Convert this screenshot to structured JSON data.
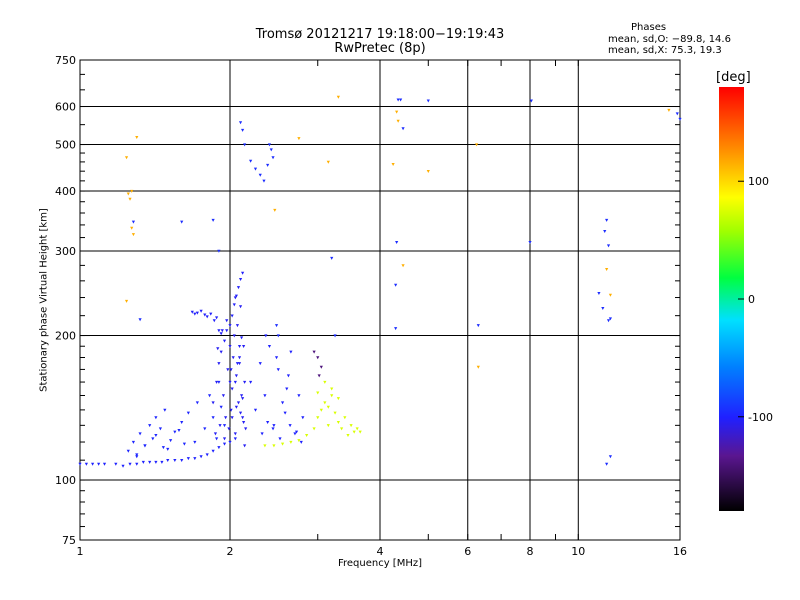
{
  "chart_data": {
    "type": "scatter",
    "title_line1": "Tromsø 20121217 19:18:00−19:19:43",
    "title_line2": "RwPretec (8p)",
    "stats": {
      "heading": "Phases",
      "line_o": "mean, sd,O: −89.8, 14.6",
      "line_x": "mean, sd,X:  75.3, 19.3"
    },
    "xlabel": "Frequency [MHz]",
    "ylabel": "Stationary phase Virtual Height [km]",
    "x_scale": "log",
    "y_scale": "log",
    "xlim": [
      1,
      16
    ],
    "ylim": [
      75,
      750
    ],
    "xticks": [
      1,
      2,
      4,
      6,
      8,
      10,
      16
    ],
    "yticks": [
      75,
      100,
      200,
      300,
      400,
      500,
      600,
      750
    ],
    "grid_x": [
      2,
      4,
      6,
      8,
      10
    ],
    "grid_y": [
      100,
      200,
      300,
      400,
      500,
      600
    ],
    "colorbar": {
      "label": "[deg]",
      "range": [
        -180,
        180
      ],
      "ticks": [
        -100,
        0,
        100
      ]
    },
    "point_groups": [
      {
        "name": "base trace",
        "phase": -100,
        "x": [
          1.0,
          1.03,
          1.06,
          1.09,
          1.12,
          1.18,
          1.22,
          1.26,
          1.3,
          1.34,
          1.38,
          1.42,
          1.46,
          1.5,
          1.55,
          1.6,
          1.65,
          1.7,
          1.75,
          1.8,
          1.85,
          1.9,
          1.95,
          2.0,
          2.05
        ],
        "y": [
          108,
          108,
          108,
          108,
          108,
          108,
          107,
          108,
          108,
          109,
          109,
          109,
          109,
          110,
          110,
          110,
          111,
          111,
          112,
          113,
          115,
          117,
          119,
          120,
          122
        ]
      },
      {
        "name": "low-band scatter",
        "phase": -98,
        "x": [
          1.25,
          1.28,
          1.3,
          1.32,
          1.35,
          1.38,
          1.4,
          1.42,
          1.45,
          1.48,
          1.5,
          1.55,
          1.6,
          1.65,
          1.7,
          1.72,
          1.78,
          1.82,
          1.85,
          1.88,
          1.9,
          1.92,
          1.95,
          1.3,
          1.35,
          1.42,
          1.47,
          1.52,
          1.58,
          1.62
        ],
        "y": [
          115,
          120,
          112,
          125,
          118,
          130,
          122,
          135,
          128,
          140,
          116,
          126,
          132,
          138,
          120,
          145,
          128,
          150,
          135,
          122,
          160,
          142,
          130,
          113,
          118,
          124,
          117,
          121,
          127,
          119
        ]
      },
      {
        "name": "O-mode trace",
        "phase": -102,
        "x": [
          1.68,
          1.7,
          1.72,
          1.75,
          1.78,
          1.8,
          1.83,
          1.86,
          1.88,
          1.9,
          1.92,
          1.95,
          1.97,
          2.0,
          2.02,
          2.04,
          2.06,
          2.08,
          2.1,
          2.12,
          2.05,
          2.07,
          2.09,
          2.11
        ],
        "y": [
          224,
          222,
          223,
          225,
          221,
          219,
          222,
          215,
          218,
          205,
          202,
          195,
          205,
          210,
          220,
          232,
          242,
          252,
          262,
          270,
          160,
          175,
          190,
          198
        ]
      },
      {
        "name": "spread F cluster",
        "phase": -104,
        "x": [
          1.85,
          1.88,
          1.9,
          1.92,
          1.94,
          1.96,
          1.98,
          2.0,
          2.01,
          2.02,
          2.03,
          2.04,
          2.05,
          2.06,
          2.07,
          2.08,
          2.09,
          2.1,
          2.11,
          2.12,
          2.13,
          2.14,
          2.15,
          1.87,
          1.91,
          1.95,
          1.99,
          2.02,
          2.06,
          2.1,
          2.13,
          1.89,
          1.93,
          1.97,
          2.01,
          2.05,
          2.09,
          2.12,
          2.14,
          2.0
        ],
        "y": [
          145,
          160,
          175,
          185,
          150,
          135,
          170,
          190,
          140,
          155,
          180,
          200,
          125,
          165,
          210,
          145,
          175,
          230,
          150,
          135,
          190,
          160,
          128,
          125,
          130,
          122,
          128,
          135,
          142,
          138,
          132,
          188,
          205,
          215,
          170,
          240,
          180,
          148,
          118,
          160
        ]
      },
      {
        "name": "mid-band cluster",
        "phase": -100,
        "x": [
          2.2,
          2.25,
          2.3,
          2.35,
          2.4,
          2.45,
          2.5,
          2.55,
          2.6,
          2.65,
          2.7,
          2.75,
          2.8,
          2.32,
          2.38,
          2.44,
          2.52,
          2.58,
          2.64,
          2.72,
          2.78,
          2.36,
          2.48,
          2.62
        ],
        "y": [
          160,
          140,
          175,
          150,
          190,
          130,
          170,
          145,
          155,
          185,
          125,
          150,
          135,
          125,
          132,
          128,
          122,
          138,
          130,
          126,
          120,
          200,
          180,
          165
        ]
      },
      {
        "name": "X-mode cluster",
        "phase": 75,
        "x": [
          2.35,
          2.45,
          2.55,
          2.65,
          2.75,
          2.85,
          2.95,
          3.0,
          3.05,
          3.1,
          3.15,
          3.2,
          3.25,
          3.3,
          3.35,
          3.4,
          3.45,
          3.5,
          3.55,
          3.6,
          3.65,
          3.1,
          3.2,
          3.3,
          3.0,
          3.15
        ],
        "y": [
          118,
          118,
          119,
          120,
          121,
          124,
          128,
          135,
          140,
          145,
          130,
          150,
          138,
          132,
          128,
          135,
          124,
          130,
          126,
          128,
          126,
          160,
          155,
          148,
          152,
          142
        ]
      },
      {
        "name": "purple trace",
        "phase": -140,
        "x": [
          2.95,
          3.0,
          3.05,
          3.02
        ],
        "y": [
          185,
          180,
          172,
          165
        ]
      },
      {
        "name": "blue scattered echoes",
        "phase": -95,
        "x": [
          1.28,
          1.32,
          1.6,
          1.85,
          1.9,
          2.1,
          2.12,
          2.14,
          2.2,
          2.25,
          2.3,
          2.34,
          2.38,
          2.4,
          2.42,
          2.44,
          2.48,
          2.5,
          3.2,
          3.25,
          4.3,
          4.32,
          4.3,
          4.35,
          4.4,
          4.45,
          5.0,
          6.3,
          8.0,
          8.05,
          11.0,
          11.2,
          11.3,
          11.4,
          11.5,
          11.6,
          11.5,
          11.6,
          11.4,
          15.8,
          16.0
        ],
        "y": [
          345,
          216,
          345,
          348,
          300,
          556,
          536,
          500,
          462,
          445,
          432,
          420,
          453,
          500,
          488,
          470,
          210,
          200,
          290,
          200,
          255,
          313,
          207,
          620,
          620,
          540,
          617,
          210,
          313,
          617,
          245,
          228,
          330,
          348,
          215,
          217,
          308,
          112,
          108,
          580,
          565
        ]
      },
      {
        "name": "warm scattered echoes",
        "phase": 115,
        "x": [
          1.24,
          1.25,
          1.26,
          1.27,
          1.28,
          1.3,
          1.27,
          1.24,
          2.46,
          2.75,
          3.15,
          3.3,
          4.25,
          4.32,
          4.35,
          4.45,
          5.0,
          6.25,
          6.3,
          11.4,
          11.6,
          15.2
        ],
        "y": [
          470,
          395,
          385,
          335,
          325,
          518,
          400,
          236,
          365,
          515,
          460,
          628,
          455,
          585,
          560,
          280,
          440,
          500,
          172,
          275,
          243,
          590
        ]
      }
    ]
  }
}
